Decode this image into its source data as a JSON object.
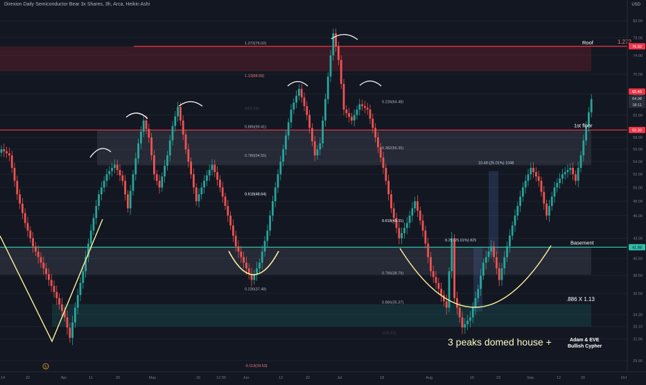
{
  "header": {
    "title": "Direxion Daily Semiconductor Bear 3x Shares, 3h, Arca, Heikin Ashi",
    "currency": "USD"
  },
  "colors": {
    "background": "#131722",
    "up": "#26a69a",
    "down": "#ef5350",
    "level_red": "#f23645",
    "level_teal": "#2dbfa7",
    "curve": "#fff59d",
    "annotation": "#ffffff"
  },
  "chart_data": {
    "type": "candlestick",
    "y_axis": {
      "scale": "log",
      "range": [
        29.3,
        84.5
      ],
      "ticks": [
        "82.00",
        "78.00",
        "74.00",
        "70.00",
        "66.00",
        "62.00",
        "58.00",
        "56.00",
        "54.00",
        "52.00",
        "50.00",
        "48.00",
        "46.00",
        "43.00",
        "40.50",
        "38.50",
        "36.50",
        "34.30",
        "33.10",
        "31.90",
        "29.90"
      ]
    },
    "x_axis": {
      "ticks": [
        "14",
        "22",
        "Apr",
        "11",
        "20",
        "May",
        "16",
        "12:30",
        "Jun",
        "13",
        "22",
        "Jul",
        "18",
        "Aug",
        "15",
        "23",
        "Sep",
        "12",
        "20",
        "Oct"
      ]
    },
    "price_anchors": [
      [
        0,
        56
      ],
      [
        3,
        55
      ],
      [
        6,
        49
      ],
      [
        9,
        45
      ],
      [
        12,
        42
      ],
      [
        15,
        40
      ],
      [
        18,
        38
      ],
      [
        21,
        36
      ],
      [
        24,
        34
      ],
      [
        26,
        32
      ],
      [
        28,
        35
      ],
      [
        31,
        39
      ],
      [
        34,
        44
      ],
      [
        37,
        49
      ],
      [
        40,
        52
      ],
      [
        43,
        53.5
      ],
      [
        46,
        51
      ],
      [
        48,
        47
      ],
      [
        50,
        52
      ],
      [
        52,
        57
      ],
      [
        54,
        61
      ],
      [
        56,
        58
      ],
      [
        58,
        52
      ],
      [
        60,
        50
      ],
      [
        63,
        55
      ],
      [
        65,
        60
      ],
      [
        67,
        63.5
      ],
      [
        70,
        56
      ],
      [
        72,
        52
      ],
      [
        74,
        48
      ],
      [
        77,
        51
      ],
      [
        80,
        53.5
      ],
      [
        83,
        50
      ],
      [
        86,
        46
      ],
      [
        89,
        42
      ],
      [
        92,
        40
      ],
      [
        95,
        38
      ],
      [
        98,
        40
      ],
      [
        101,
        44
      ],
      [
        104,
        50
      ],
      [
        107,
        56
      ],
      [
        110,
        63
      ],
      [
        113,
        67
      ],
      [
        116,
        62
      ],
      [
        119,
        55
      ],
      [
        121,
        57
      ],
      [
        123,
        65
      ],
      [
        125,
        74
      ],
      [
        126,
        79
      ],
      [
        128,
        73
      ],
      [
        130,
        63
      ],
      [
        133,
        61
      ],
      [
        136,
        64
      ],
      [
        139,
        63
      ],
      [
        142,
        58
      ],
      [
        145,
        53
      ],
      [
        148,
        47
      ],
      [
        151,
        43
      ],
      [
        154,
        45
      ],
      [
        157,
        48
      ],
      [
        160,
        44
      ],
      [
        163,
        39
      ],
      [
        166,
        37
      ],
      [
        169,
        35
      ],
      [
        171,
        43
      ],
      [
        172,
        36
      ],
      [
        175,
        33
      ],
      [
        178,
        34
      ],
      [
        181,
        37
      ],
      [
        183,
        40
      ],
      [
        186,
        42
      ],
      [
        189,
        38
      ],
      [
        192,
        42
      ],
      [
        195,
        46
      ],
      [
        198,
        50
      ],
      [
        201,
        53
      ],
      [
        204,
        51
      ],
      [
        207,
        46
      ],
      [
        210,
        50
      ],
      [
        213,
        52
      ],
      [
        216,
        53
      ],
      [
        218,
        51
      ],
      [
        220,
        55
      ],
      [
        222,
        60
      ],
      [
        224,
        65
      ]
    ],
    "levels": [
      {
        "label": "Roof",
        "value": 76.02,
        "price_tag": "76.02",
        "side_label": "1.272"
      },
      {
        "label": "1st floor",
        "value": 59.3,
        "price_tag": "59.30"
      },
      {
        "label": "Basement",
        "value": 41.88,
        "price_tag": "41.88"
      }
    ],
    "current_price_tags": [
      "65.49",
      "64.98",
      "18:11"
    ],
    "fib_labels": [
      "1.272(76.02)",
      "1.13(68.99)",
      "0.886(59.41)",
      "0.786(54.55)",
      "0.618(48.64)",
      "0.236(37.48)",
      "0.236(64.48)",
      "0.382(56.35)",
      "0.618(45.31)",
      "0.786(38.79)",
      "0.886(35.37)",
      "-0.113(29.53)"
    ],
    "faded_labels": [
      "1(63.26)",
      "1(32.51)"
    ],
    "measurements": [
      "10.48 (25.01%) 1048",
      "8.25 (25.01%) 825"
    ],
    "annotations": {
      "main_text": "3 peaks domed house +",
      "ratio_text": ".886 X 1.13",
      "pattern_line1": "Adam & EVE",
      "pattern_line2": "Bullish Cypher",
      "event_marker": "5"
    }
  }
}
